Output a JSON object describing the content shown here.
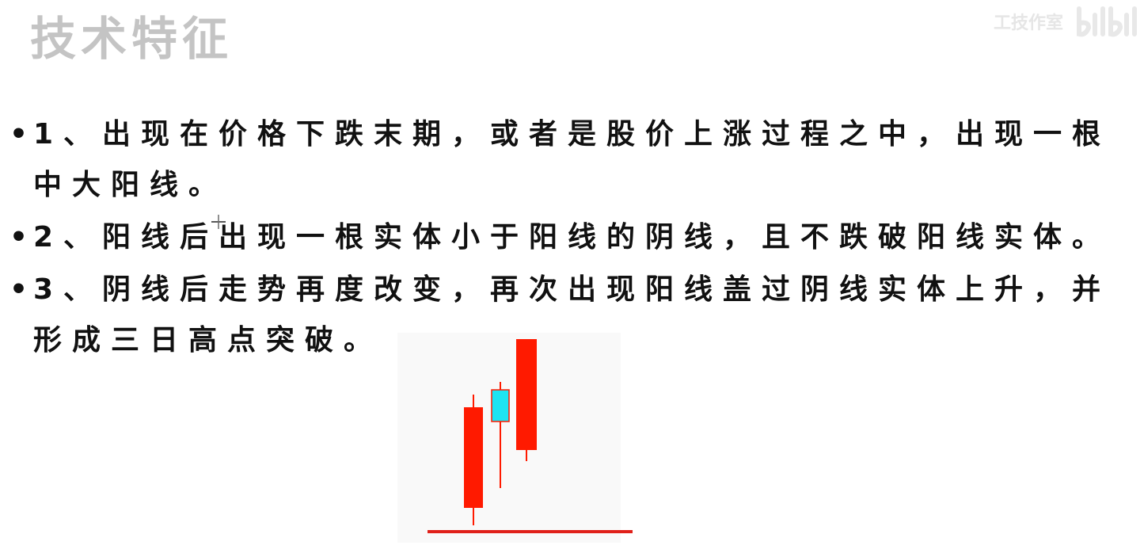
{
  "slide": {
    "title": "技术特征",
    "watermark": {
      "text": "工技作室",
      "logo_text": "bilibili"
    },
    "bullets": [
      {
        "marker": "•",
        "text": "1、出现在价格下跌末期，或者是股价上涨过程之中，出现一根中大阳线。"
      },
      {
        "marker": "•",
        "text": "2、阳线后出现一根实体小于阳线的阴线，且不跌破阳线实体。"
      },
      {
        "marker": "•",
        "text": "3、阴线后走势再度改变，再次出现阳线盖过阴线实体上升，并形成三日高点突破。"
      }
    ],
    "diagram": {
      "candles": [
        {
          "kind": "bullish",
          "color": "#ff1a00"
        },
        {
          "kind": "bearish",
          "color": "#1ee4f2"
        },
        {
          "kind": "bullish",
          "color": "#ff1a00"
        }
      ],
      "baseline_color": "#e0201a"
    }
  }
}
